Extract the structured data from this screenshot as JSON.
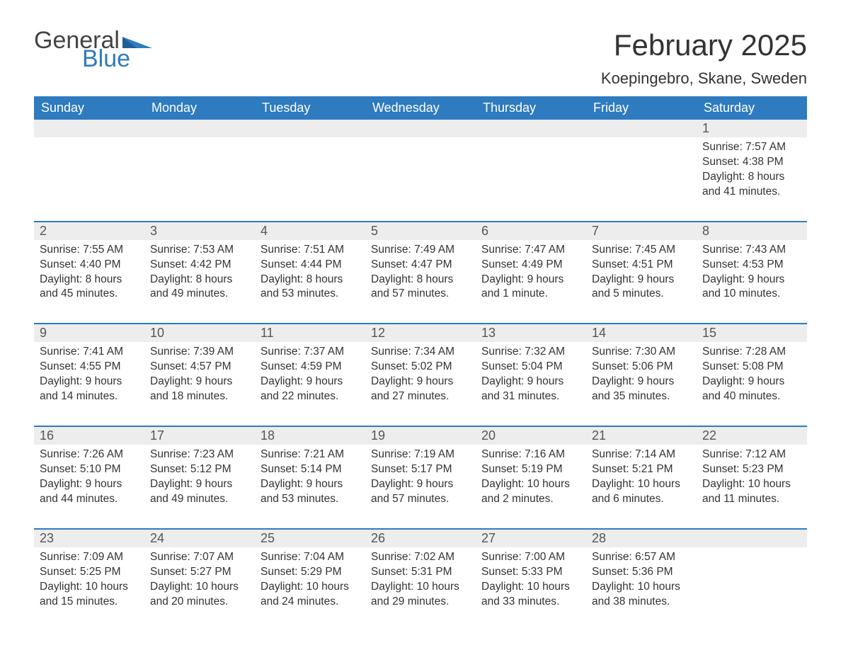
{
  "logo": {
    "general": "General",
    "blue": "Blue"
  },
  "title": "February 2025",
  "location": "Koepingebro, Skane, Sweden",
  "colors": {
    "header_bg": "#2f7bbf",
    "header_text": "#ffffff",
    "daynum_bg": "#ededed",
    "body_text": "#333333",
    "separator": "#2f7bbf",
    "logo_gray": "#434343",
    "logo_blue": "#2f7bbf"
  },
  "weekdays": [
    "Sunday",
    "Monday",
    "Tuesday",
    "Wednesday",
    "Thursday",
    "Friday",
    "Saturday"
  ],
  "weeks": [
    [
      null,
      null,
      null,
      null,
      null,
      null,
      {
        "n": "1",
        "sunrise": "Sunrise: 7:57 AM",
        "sunset": "Sunset: 4:38 PM",
        "day1": "Daylight: 8 hours",
        "day2": "and 41 minutes."
      }
    ],
    [
      {
        "n": "2",
        "sunrise": "Sunrise: 7:55 AM",
        "sunset": "Sunset: 4:40 PM",
        "day1": "Daylight: 8 hours",
        "day2": "and 45 minutes."
      },
      {
        "n": "3",
        "sunrise": "Sunrise: 7:53 AM",
        "sunset": "Sunset: 4:42 PM",
        "day1": "Daylight: 8 hours",
        "day2": "and 49 minutes."
      },
      {
        "n": "4",
        "sunrise": "Sunrise: 7:51 AM",
        "sunset": "Sunset: 4:44 PM",
        "day1": "Daylight: 8 hours",
        "day2": "and 53 minutes."
      },
      {
        "n": "5",
        "sunrise": "Sunrise: 7:49 AM",
        "sunset": "Sunset: 4:47 PM",
        "day1": "Daylight: 8 hours",
        "day2": "and 57 minutes."
      },
      {
        "n": "6",
        "sunrise": "Sunrise: 7:47 AM",
        "sunset": "Sunset: 4:49 PM",
        "day1": "Daylight: 9 hours",
        "day2": "and 1 minute."
      },
      {
        "n": "7",
        "sunrise": "Sunrise: 7:45 AM",
        "sunset": "Sunset: 4:51 PM",
        "day1": "Daylight: 9 hours",
        "day2": "and 5 minutes."
      },
      {
        "n": "8",
        "sunrise": "Sunrise: 7:43 AM",
        "sunset": "Sunset: 4:53 PM",
        "day1": "Daylight: 9 hours",
        "day2": "and 10 minutes."
      }
    ],
    [
      {
        "n": "9",
        "sunrise": "Sunrise: 7:41 AM",
        "sunset": "Sunset: 4:55 PM",
        "day1": "Daylight: 9 hours",
        "day2": "and 14 minutes."
      },
      {
        "n": "10",
        "sunrise": "Sunrise: 7:39 AM",
        "sunset": "Sunset: 4:57 PM",
        "day1": "Daylight: 9 hours",
        "day2": "and 18 minutes."
      },
      {
        "n": "11",
        "sunrise": "Sunrise: 7:37 AM",
        "sunset": "Sunset: 4:59 PM",
        "day1": "Daylight: 9 hours",
        "day2": "and 22 minutes."
      },
      {
        "n": "12",
        "sunrise": "Sunrise: 7:34 AM",
        "sunset": "Sunset: 5:02 PM",
        "day1": "Daylight: 9 hours",
        "day2": "and 27 minutes."
      },
      {
        "n": "13",
        "sunrise": "Sunrise: 7:32 AM",
        "sunset": "Sunset: 5:04 PM",
        "day1": "Daylight: 9 hours",
        "day2": "and 31 minutes."
      },
      {
        "n": "14",
        "sunrise": "Sunrise: 7:30 AM",
        "sunset": "Sunset: 5:06 PM",
        "day1": "Daylight: 9 hours",
        "day2": "and 35 minutes."
      },
      {
        "n": "15",
        "sunrise": "Sunrise: 7:28 AM",
        "sunset": "Sunset: 5:08 PM",
        "day1": "Daylight: 9 hours",
        "day2": "and 40 minutes."
      }
    ],
    [
      {
        "n": "16",
        "sunrise": "Sunrise: 7:26 AM",
        "sunset": "Sunset: 5:10 PM",
        "day1": "Daylight: 9 hours",
        "day2": "and 44 minutes."
      },
      {
        "n": "17",
        "sunrise": "Sunrise: 7:23 AM",
        "sunset": "Sunset: 5:12 PM",
        "day1": "Daylight: 9 hours",
        "day2": "and 49 minutes."
      },
      {
        "n": "18",
        "sunrise": "Sunrise: 7:21 AM",
        "sunset": "Sunset: 5:14 PM",
        "day1": "Daylight: 9 hours",
        "day2": "and 53 minutes."
      },
      {
        "n": "19",
        "sunrise": "Sunrise: 7:19 AM",
        "sunset": "Sunset: 5:17 PM",
        "day1": "Daylight: 9 hours",
        "day2": "and 57 minutes."
      },
      {
        "n": "20",
        "sunrise": "Sunrise: 7:16 AM",
        "sunset": "Sunset: 5:19 PM",
        "day1": "Daylight: 10 hours",
        "day2": "and 2 minutes."
      },
      {
        "n": "21",
        "sunrise": "Sunrise: 7:14 AM",
        "sunset": "Sunset: 5:21 PM",
        "day1": "Daylight: 10 hours",
        "day2": "and 6 minutes."
      },
      {
        "n": "22",
        "sunrise": "Sunrise: 7:12 AM",
        "sunset": "Sunset: 5:23 PM",
        "day1": "Daylight: 10 hours",
        "day2": "and 11 minutes."
      }
    ],
    [
      {
        "n": "23",
        "sunrise": "Sunrise: 7:09 AM",
        "sunset": "Sunset: 5:25 PM",
        "day1": "Daylight: 10 hours",
        "day2": "and 15 minutes."
      },
      {
        "n": "24",
        "sunrise": "Sunrise: 7:07 AM",
        "sunset": "Sunset: 5:27 PM",
        "day1": "Daylight: 10 hours",
        "day2": "and 20 minutes."
      },
      {
        "n": "25",
        "sunrise": "Sunrise: 7:04 AM",
        "sunset": "Sunset: 5:29 PM",
        "day1": "Daylight: 10 hours",
        "day2": "and 24 minutes."
      },
      {
        "n": "26",
        "sunrise": "Sunrise: 7:02 AM",
        "sunset": "Sunset: 5:31 PM",
        "day1": "Daylight: 10 hours",
        "day2": "and 29 minutes."
      },
      {
        "n": "27",
        "sunrise": "Sunrise: 7:00 AM",
        "sunset": "Sunset: 5:33 PM",
        "day1": "Daylight: 10 hours",
        "day2": "and 33 minutes."
      },
      {
        "n": "28",
        "sunrise": "Sunrise: 6:57 AM",
        "sunset": "Sunset: 5:36 PM",
        "day1": "Daylight: 10 hours",
        "day2": "and 38 minutes."
      },
      null
    ]
  ]
}
